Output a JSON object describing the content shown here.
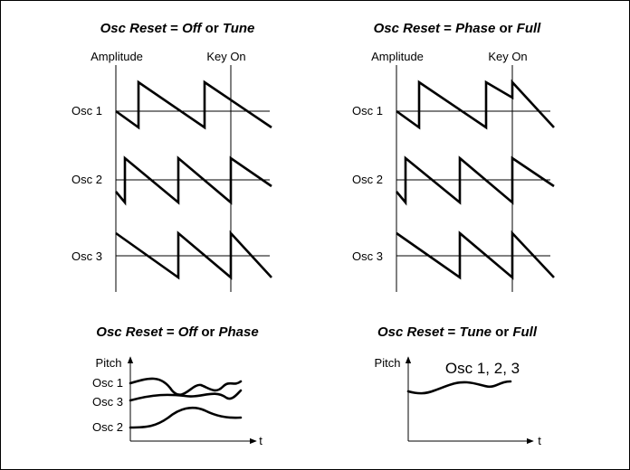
{
  "panels": {
    "top_left": {
      "title": {
        "part1": "Osc Reset",
        "eq": " = ",
        "part2": "Off",
        "or": " or ",
        "part3": "Tune"
      },
      "amplitude_label": "Amplitude",
      "key_on_label": "Key On",
      "osc_labels": [
        "Osc 1",
        "Osc 2",
        "Osc 3"
      ]
    },
    "top_right": {
      "title": {
        "part1": "Osc Reset",
        "eq": " = ",
        "part2": "Phase",
        "or": " or ",
        "part3": "Full"
      },
      "amplitude_label": "Amplitude",
      "key_on_label": "Key On",
      "osc_labels": [
        "Osc 1",
        "Osc 2",
        "Osc 3"
      ]
    },
    "bottom_left": {
      "title": {
        "part1": "Osc Reset",
        "eq": " = ",
        "part2": "Off",
        "or": " or ",
        "part3": "Phase"
      },
      "pitch_label": "Pitch",
      "t_label": "t",
      "osc_labels": [
        "Osc 1",
        "Osc 3",
        "Osc 2"
      ]
    },
    "bottom_right": {
      "title": {
        "part1": "Osc Reset",
        "eq": " = ",
        "part2": "Tune",
        "or": " or ",
        "part3": "Full"
      },
      "pitch_label": "Pitch",
      "t_label": "t",
      "curve_label": "Osc 1, 2, 3"
    }
  }
}
